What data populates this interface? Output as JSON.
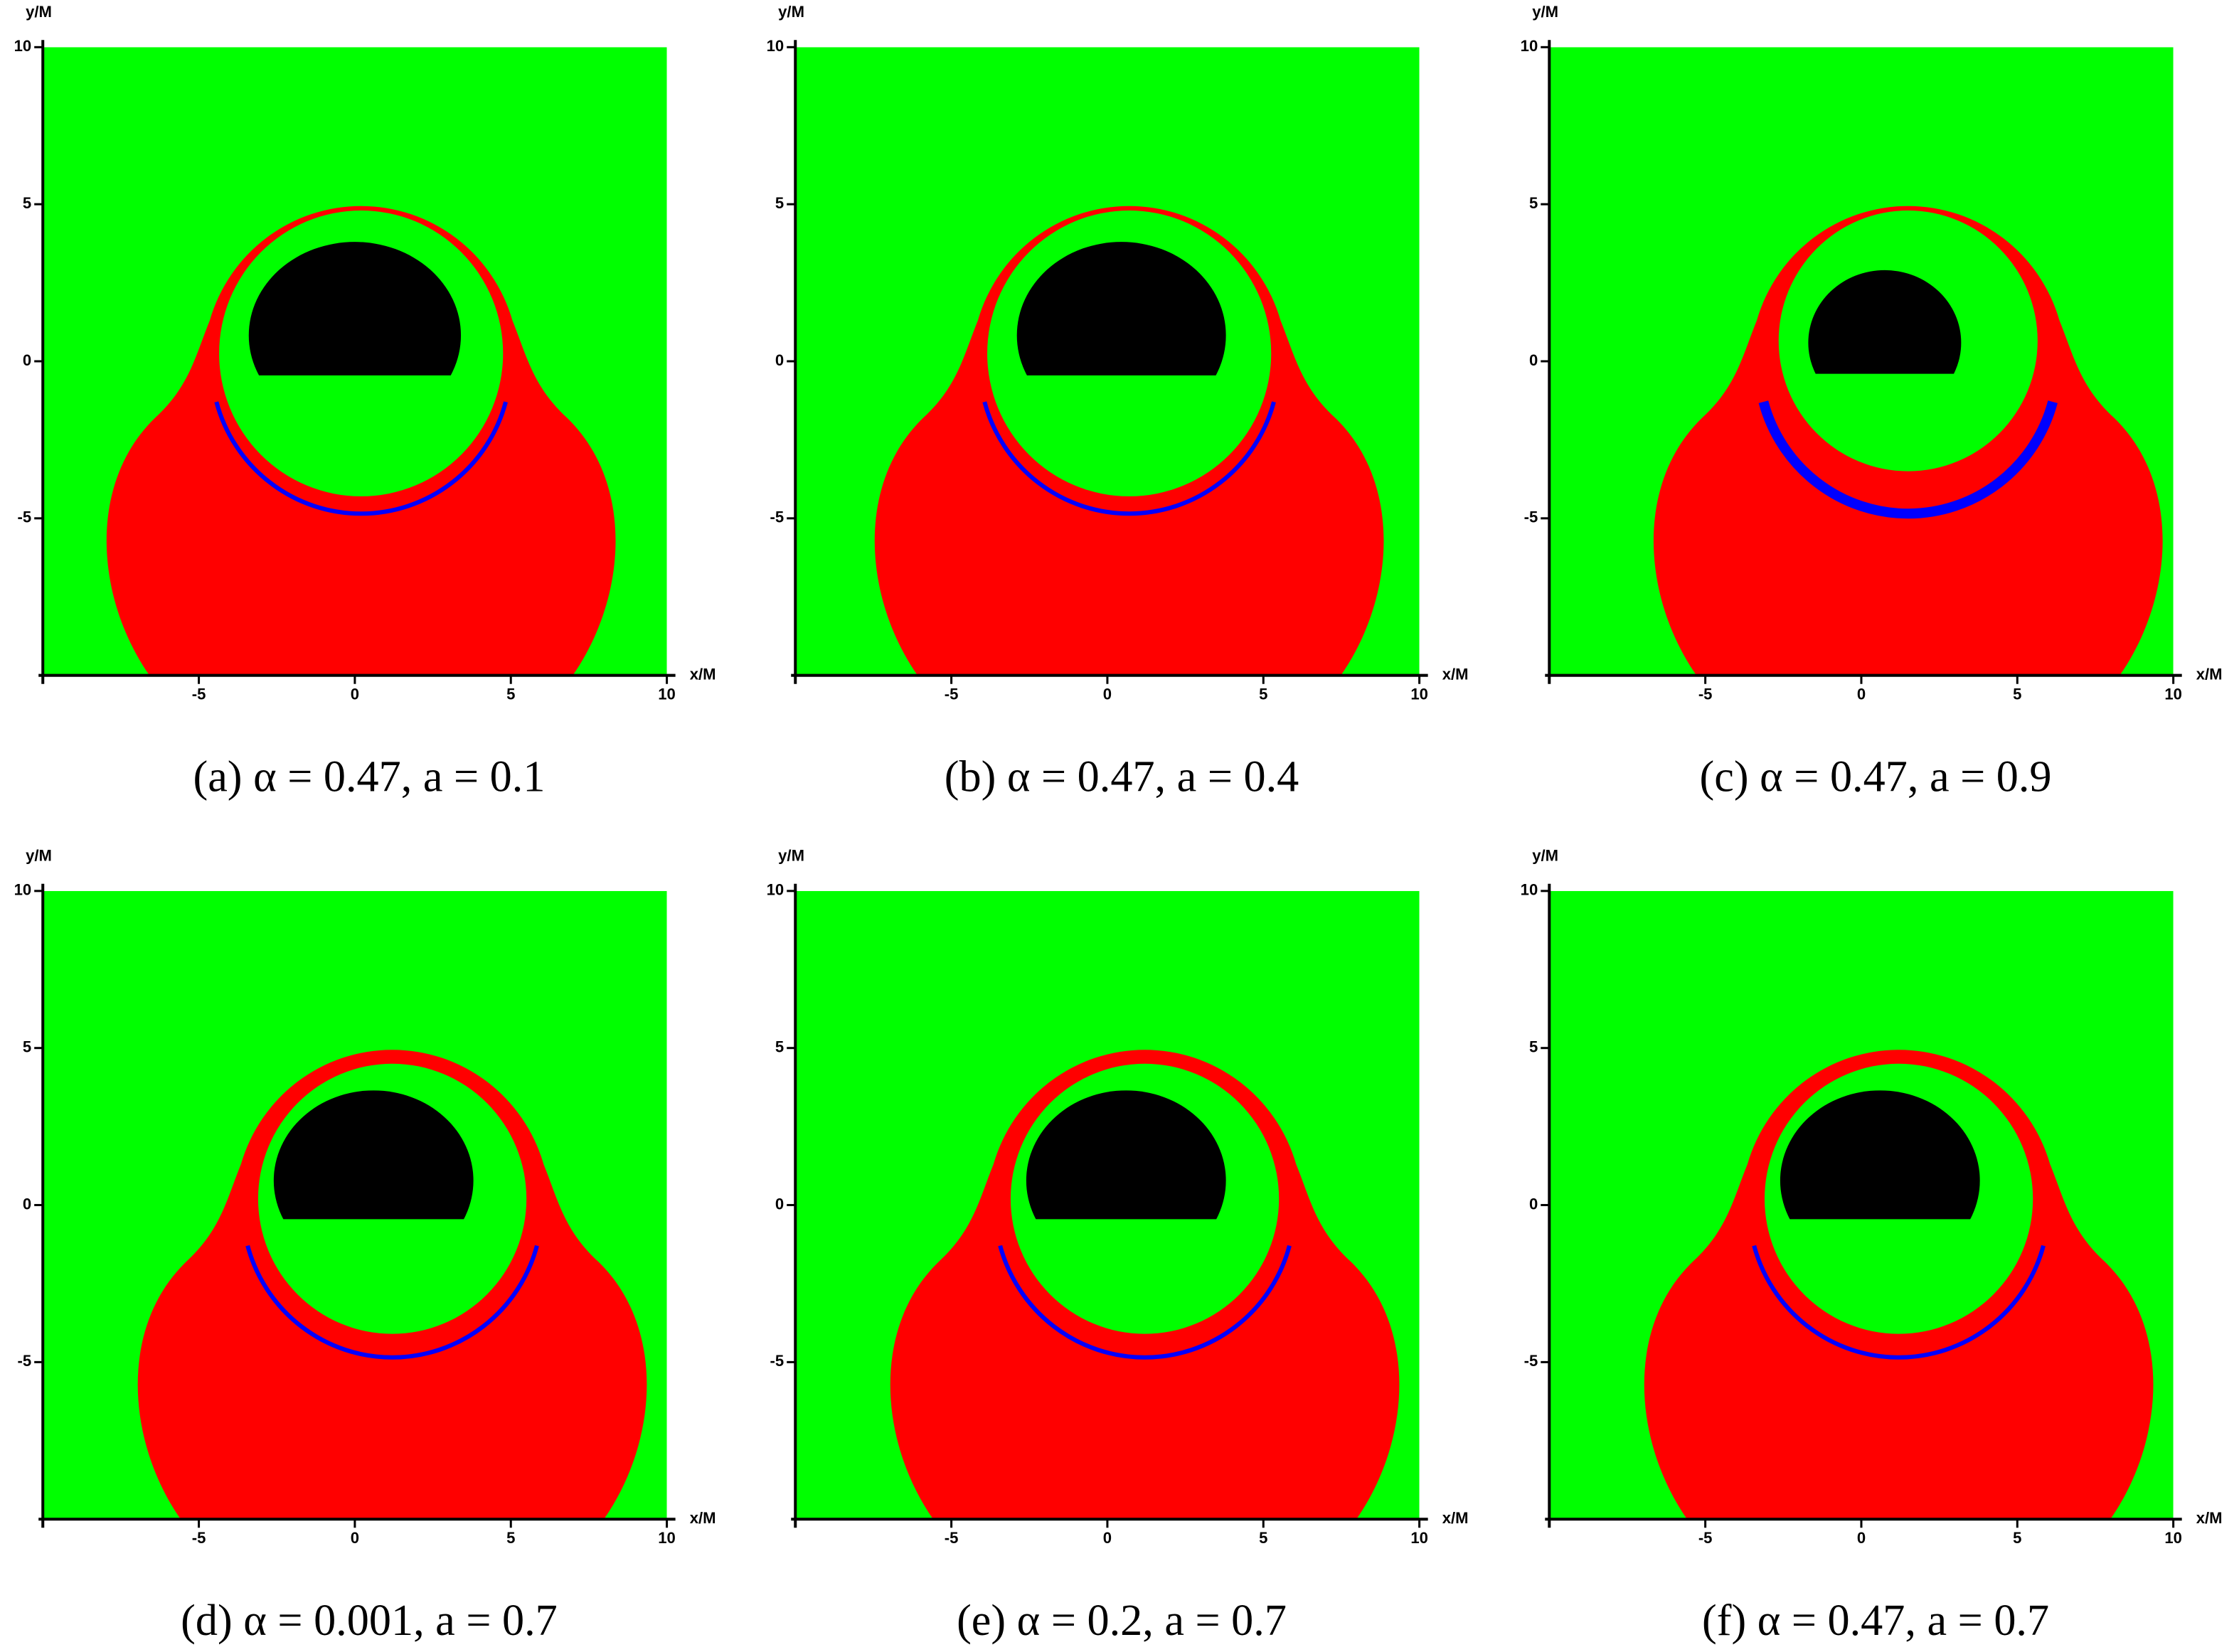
{
  "chart_data": [
    {
      "type": "region-map",
      "caption": "(a) α = 0.47, a = 0.1",
      "xlabel": "x/M",
      "ylabel": "y/M",
      "xlim": [
        -10,
        10
      ],
      "ylim": [
        -10,
        10
      ],
      "xticks": [
        -5,
        0,
        5,
        10
      ],
      "yticks": [
        -5,
        0,
        5,
        10
      ]
    },
    {
      "type": "region-map",
      "caption": "(b) α = 0.47, a = 0.4",
      "xlabel": "x/M",
      "ylabel": "y/M",
      "xlim": [
        -10,
        10
      ],
      "ylim": [
        -10,
        10
      ],
      "xticks": [
        -5,
        0,
        5,
        10
      ],
      "yticks": [
        -5,
        0,
        5,
        10
      ]
    },
    {
      "type": "region-map",
      "caption": "(c) α = 0.47, a = 0.9",
      "xlabel": "x/M",
      "ylabel": "y/M",
      "xlim": [
        -10,
        10
      ],
      "ylim": [
        -10,
        10
      ],
      "xticks": [
        -5,
        0,
        5,
        10
      ],
      "yticks": [
        -5,
        0,
        5,
        10
      ]
    },
    {
      "type": "region-map",
      "caption": "(d) α = 0.001, a = 0.7",
      "xlabel": "x/M",
      "ylabel": "y/M",
      "xlim": [
        -10,
        10
      ],
      "ylim": [
        -10,
        10
      ],
      "xticks": [
        -5,
        0,
        5,
        10
      ],
      "yticks": [
        -5,
        0,
        5,
        10
      ]
    },
    {
      "type": "region-map",
      "caption": "(e) α = 0.2, a = 0.7",
      "xlabel": "x/M",
      "ylabel": "y/M",
      "xlim": [
        -10,
        10
      ],
      "ylim": [
        -10,
        10
      ],
      "xticks": [
        -5,
        0,
        5,
        10
      ],
      "yticks": [
        -5,
        0,
        5,
        10
      ]
    },
    {
      "type": "region-map",
      "caption": "(f) α = 0.47, a = 0.7",
      "xlabel": "x/M",
      "ylabel": "y/M",
      "xlim": [
        -10,
        10
      ],
      "ylim": [
        -10,
        10
      ],
      "xticks": [
        -5,
        0,
        5,
        10
      ],
      "yticks": [
        -5,
        0,
        5,
        10
      ]
    }
  ]
}
